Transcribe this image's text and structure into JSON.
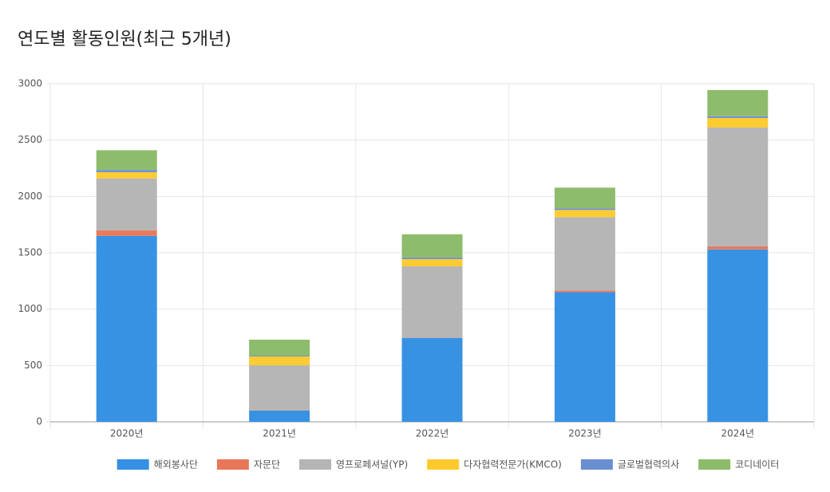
{
  "chart_data": {
    "type": "stacked_bar",
    "title": "연도별 활동인원(최근 5개년)",
    "categories": [
      "2020년",
      "2021년",
      "2022년",
      "2023년",
      "2024년"
    ],
    "series": [
      {
        "name": "해외봉사단",
        "color": "#3490e2",
        "values": [
          1650,
          100,
          745,
          1150,
          1530
        ]
      },
      {
        "name": "자문단",
        "color": "#e8775a",
        "values": [
          50,
          2,
          3,
          15,
          27
        ]
      },
      {
        "name": "영프로페셔널(YP)",
        "color": "#b5b5b5",
        "values": [
          460,
          400,
          632,
          651,
          1054
        ]
      },
      {
        "name": "다자협력전문가(KMCO)",
        "color": "#fdca2e",
        "values": [
          55,
          78,
          64,
          64,
          85
        ]
      },
      {
        "name": "글로벌협력의사",
        "color": "#6a8fd1",
        "values": [
          20,
          7,
          15,
          14,
          15
        ]
      },
      {
        "name": "코디네이터",
        "color": "#8cbb6a",
        "values": [
          175,
          142,
          205,
          184,
          233
        ]
      }
    ],
    "ylim": [
      0,
      3000
    ],
    "yticks": [
      0,
      500,
      1000,
      1500,
      2000,
      2500,
      3000
    ],
    "grid": true,
    "legend": "bottom"
  }
}
